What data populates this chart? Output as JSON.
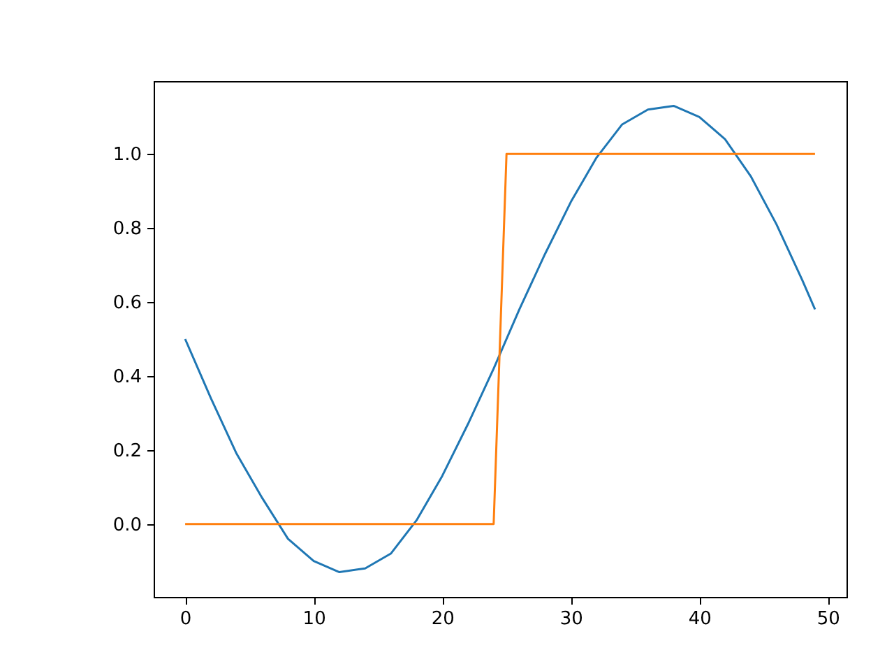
{
  "chart_data": {
    "type": "line",
    "series": [
      {
        "color": "#1f77b4",
        "x": [
          0,
          2,
          4,
          6,
          8,
          10,
          12,
          14,
          16,
          18,
          20,
          22,
          24,
          26,
          28,
          30,
          32,
          34,
          36,
          38,
          40,
          42,
          44,
          46,
          48,
          49
        ],
        "values": [
          0.5,
          0.34,
          0.19,
          0.07,
          -0.04,
          -0.1,
          -0.13,
          -0.12,
          -0.08,
          0.01,
          0.13,
          0.27,
          0.42,
          0.58,
          0.73,
          0.87,
          0.99,
          1.08,
          1.12,
          1.13,
          1.1,
          1.04,
          0.94,
          0.81,
          0.66,
          0.58
        ]
      },
      {
        "color": "#ff7f0e",
        "x": [
          0,
          24,
          25,
          49
        ],
        "values": [
          0,
          0,
          1,
          1
        ]
      }
    ],
    "xlim": [
      -2.45,
      51.45
    ],
    "xticks": [
      0,
      10,
      20,
      30,
      40,
      50
    ],
    "ylim": [
      -0.197,
      1.197
    ],
    "yticks": [
      {
        "value": 0,
        "label": "0.0"
      },
      {
        "value": 0.2,
        "label": "0.2"
      },
      {
        "value": 0.4,
        "label": "0.4"
      },
      {
        "value": 0.6,
        "label": "0.6"
      },
      {
        "value": 0.8,
        "label": "0.8"
      },
      {
        "value": 1,
        "label": "1.0"
      }
    ],
    "grid": false
  }
}
